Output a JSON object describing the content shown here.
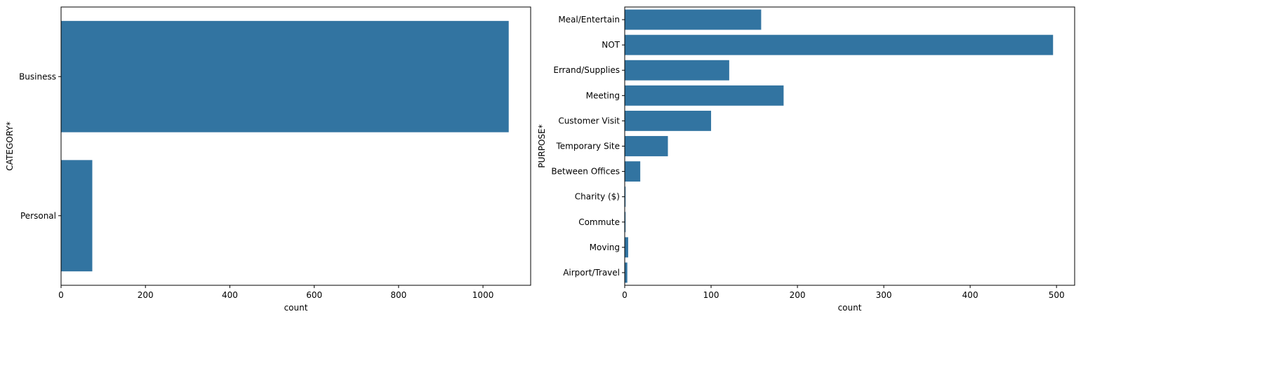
{
  "chart_data": [
    {
      "type": "bar",
      "orientation": "horizontal",
      "categories": [
        "Business",
        "Personal"
      ],
      "values": [
        1061,
        74
      ],
      "xlabel": "count",
      "ylabel": "CATEGORY*",
      "xlim": [
        0,
        1113
      ],
      "xticks": [
        0,
        200,
        400,
        600,
        800,
        1000
      ],
      "bar_color": "#3274a1",
      "grid": false
    },
    {
      "type": "bar",
      "orientation": "horizontal",
      "categories": [
        "Meal/Entertain",
        "NOT",
        "Errand/Supplies",
        "Meeting",
        "Customer Visit",
        "Temporary Site",
        "Between Offices",
        "Charity ($)",
        "Commute",
        "Moving",
        "Airport/Travel"
      ],
      "values": [
        158,
        496,
        121,
        184,
        100,
        50,
        18,
        1,
        1,
        4,
        3
      ],
      "xlabel": "count",
      "ylabel": "PURPOSE*",
      "xlim": [
        0,
        521
      ],
      "xticks": [
        0,
        100,
        200,
        300,
        400,
        500
      ],
      "bar_color": "#3274a1",
      "grid": false
    }
  ]
}
